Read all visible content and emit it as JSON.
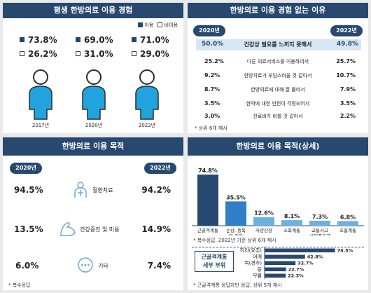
{
  "experience": {
    "title": "평생 한방의료 이용 경험",
    "legend_used": "이용",
    "legend_not_used": "비이용",
    "years": [
      "2017년",
      "2020년",
      "2022년"
    ],
    "used": [
      "73.8%",
      "69.0%",
      "71.0%"
    ],
    "not_used": [
      "26.2%",
      "31.0%",
      "29.0%"
    ]
  },
  "reasons": {
    "title": "한방의료 이용 경험 없는 이유",
    "left_year": "2020년",
    "right_year": "2022년",
    "rows": [
      {
        "label": "건강상 필요를 느끼지 못해서",
        "y2020": "50.0%",
        "y2022": "49.8%"
      },
      {
        "label": "다른 의료서비스를 이용하여서",
        "y2020": "25.2%",
        "y2022": "25.7%"
      },
      {
        "label": "한방치료가 부담스러울 것 같아서",
        "y2020": "9.2%",
        "y2022": "10.7%"
      },
      {
        "label": "한방의료에 대해 잘 몰라서",
        "y2020": "8.7%",
        "y2022": "7.9%"
      },
      {
        "label": "한약에 대한 안전이 걱정되어서",
        "y2020": "3.5%",
        "y2022": "3.5%"
      },
      {
        "label": "진료비가 비쌀 것 같아서",
        "y2020": "3.0%",
        "y2022": "2.2%"
      }
    ],
    "note": "* 상위 6개 제시"
  },
  "purpose": {
    "title": "한방의료 이용 목적",
    "left_year": "2020년",
    "right_year": "2022년",
    "rows": [
      {
        "label": "질환치료",
        "y2020": "94.5%",
        "y2022": "94.2%"
      },
      {
        "label": "건강증진 및 미용",
        "y2020": "13.5%",
        "y2022": "14.9%"
      },
      {
        "label": "기타",
        "y2020": "6.0%",
        "y2022": "7.4%"
      }
    ],
    "note": "* 복수응답"
  },
  "detail": {
    "title": "한방의료 이용 목적(상세)",
    "note1": "* 복수응답, 2022년 기준 상위 6개 제시",
    "note2": "* 근골격계통 응답자만 응답, 상위 5개 제시",
    "sub_label_1": "근골격계통",
    "sub_label_2": "세부 부위"
  },
  "chart_data": [
    {
      "type": "bar",
      "title": "한방의료 이용 목적(상세)",
      "categories": [
        "근골격계통",
        "손상, 중독 및 외인",
        "자양강장",
        "소화계통",
        "교통사고 상해증후군",
        "호흡계통"
      ],
      "values": [
        74.8,
        35.5,
        12.6,
        8.1,
        7.3,
        6.8
      ],
      "value_labels": [
        "74.8%",
        "35.5%",
        "12.6%",
        "8.1%",
        "7.3%",
        "6.8%"
      ],
      "ylim": [
        0,
        80
      ],
      "colors": [
        "#27486f",
        "#2f7fc7",
        "#6fb0e0",
        "#6fb0e0",
        "#6fb0e0",
        "#6fb0e0"
      ]
    },
    {
      "type": "bar",
      "orientation": "horizontal",
      "categories": [
        "허리(요추)",
        "어깨",
        "목(경추)",
        "등",
        "무릎"
      ],
      "values": [
        74.5,
        42.8,
        32.7,
        22.7,
        22.3
      ],
      "value_labels": [
        "74.5%",
        "42.8%",
        "32.7%",
        "22.7%",
        "22.3%"
      ],
      "xlim": [
        0,
        80
      ],
      "color": "#27486f"
    }
  ]
}
